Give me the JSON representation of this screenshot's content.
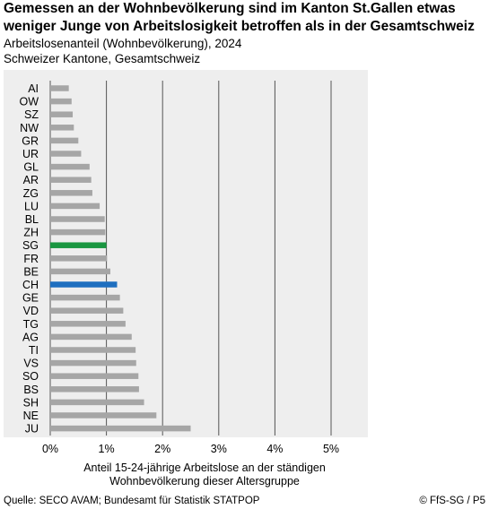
{
  "title_line1": "Gemessen an der Wohnbevölkerung sind im Kanton St.Gallen etwas",
  "title_line2": "weniger Junge von Arbeitslosigkeit betroffen als in der Gesamtschweiz",
  "subtitle1": "Arbeitslosenanteil (Wohnbevölkerung), 2024",
  "subtitle2": "Schweizer Kantone, Gesamtschweiz",
  "source": "Quelle: SECO AVAM; Bundesamt für Statistik  STATPOP",
  "copyright": "© FfS-SG / P5",
  "colors": {
    "default": "#a6a6a6",
    "highlight_sg": "#1a9641",
    "highlight_ch": "#1f6fbf",
    "plot_bg": "#eeeeee",
    "grid": "#555555"
  },
  "chart_data": {
    "type": "bar",
    "orientation": "horizontal",
    "categories": [
      "AI",
      "OW",
      "SZ",
      "NW",
      "GR",
      "UR",
      "GL",
      "AR",
      "ZG",
      "LU",
      "BL",
      "ZH",
      "SG",
      "FR",
      "BE",
      "CH",
      "GE",
      "VD",
      "TG",
      "AG",
      "TI",
      "VS",
      "SO",
      "BS",
      "SH",
      "NE",
      "JU"
    ],
    "values": [
      0.33,
      0.38,
      0.4,
      0.42,
      0.5,
      0.55,
      0.7,
      0.73,
      0.75,
      0.88,
      0.97,
      0.98,
      1.0,
      1.01,
      1.07,
      1.19,
      1.24,
      1.3,
      1.34,
      1.45,
      1.52,
      1.53,
      1.57,
      1.58,
      1.67,
      1.89,
      2.5
    ],
    "highlight": {
      "SG": "highlight_sg",
      "CH": "highlight_ch"
    },
    "xlim": [
      0,
      5
    ],
    "xticks": [
      "0%",
      "1%",
      "2%",
      "3%",
      "4%",
      "5%"
    ],
    "xlabel_line1": "Anteil 15-24-jährige Arbeitslose an der ständigen",
    "xlabel_line2": "Wohnbevölkerung dieser Altersgruppe",
    "grid": true
  }
}
